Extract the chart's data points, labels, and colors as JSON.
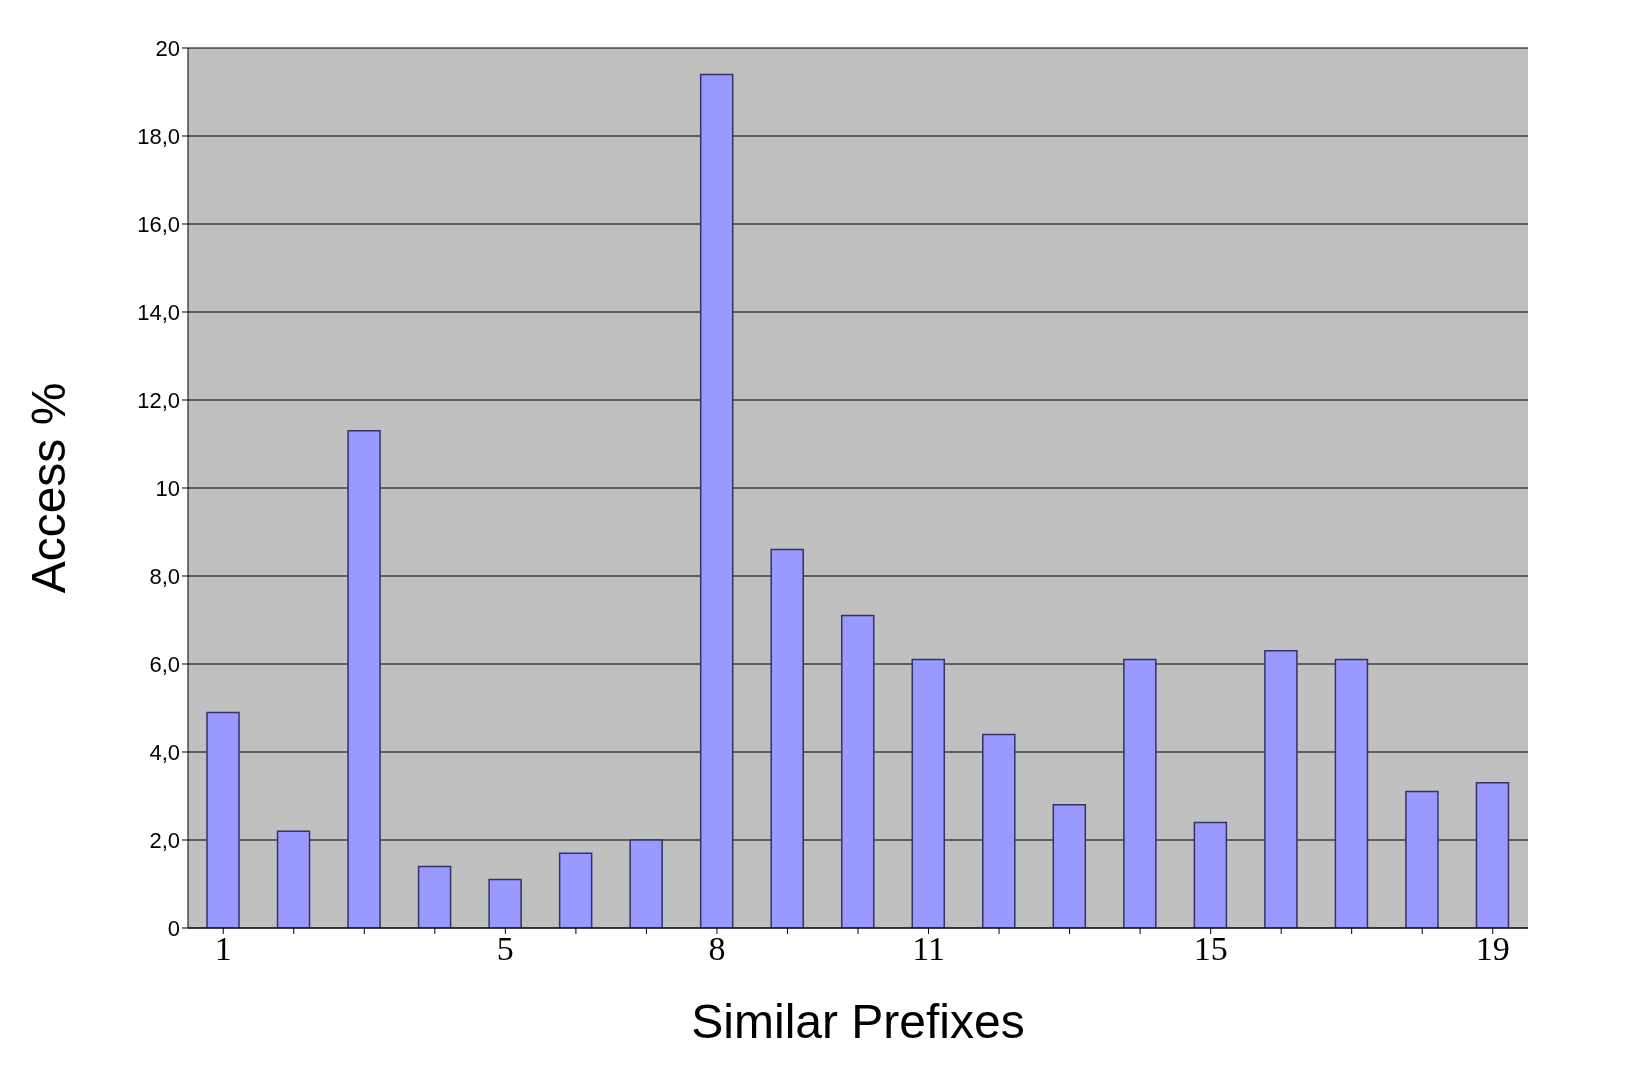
{
  "chart_data": {
    "type": "bar",
    "xlabel": "Similar Prefixes",
    "ylabel": "Access %",
    "categories": [
      "1",
      null,
      null,
      null,
      "5",
      null,
      null,
      "8",
      null,
      null,
      "11",
      null,
      null,
      null,
      "15",
      null,
      null,
      null,
      "19"
    ],
    "values": [
      4.9,
      2.2,
      11.3,
      1.4,
      1.1,
      1.7,
      2.0,
      19.4,
      8.6,
      7.1,
      6.1,
      4.4,
      2.8,
      6.1,
      2.4,
      6.3,
      6.1,
      3.1,
      3.3
    ],
    "color": "#9999ff",
    "ylim": [
      0,
      20
    ],
    "yticks": [
      {
        "value": 0,
        "label": "0"
      },
      {
        "value": 2,
        "label": "2,0"
      },
      {
        "value": 4,
        "label": "4,0"
      },
      {
        "value": 6,
        "label": "6,0"
      },
      {
        "value": 8,
        "label": "8,0"
      },
      {
        "value": 10,
        "label": "10"
      },
      {
        "value": 12,
        "label": "12,0"
      },
      {
        "value": 14,
        "label": "14,0"
      },
      {
        "value": 16,
        "label": "16,0"
      },
      {
        "value": 18,
        "label": "18,0"
      },
      {
        "value": 20,
        "label": "20"
      }
    ],
    "grid": "y"
  }
}
